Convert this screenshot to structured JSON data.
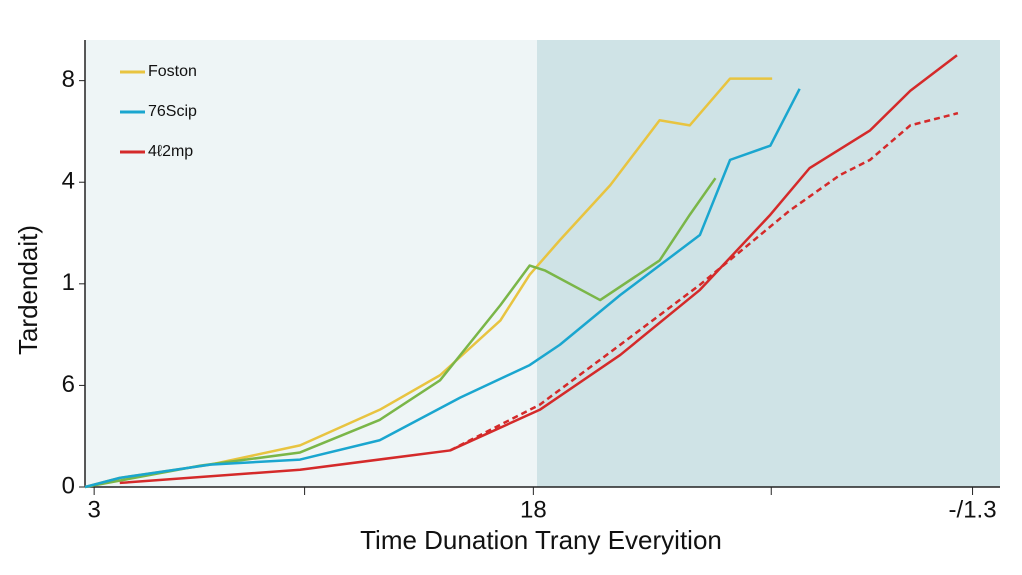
{
  "chart_data": {
    "type": "line",
    "y_label": "Tardendait)",
    "x_label": "Time Dunation Trany Everyition",
    "xlim": [
      0,
      100
    ],
    "ylim": [
      0,
      4.4
    ],
    "xticks": [
      {
        "value": 1,
        "label": "3"
      },
      {
        "value": 24,
        "label": null
      },
      {
        "value": 49,
        "label": "18"
      },
      {
        "value": 75,
        "label": null
      },
      {
        "value": 97,
        "label": "-/1.3"
      }
    ],
    "yticks": [
      0,
      {
        "value": 1,
        "label": "6"
      },
      {
        "value": 2,
        "label": "1"
      },
      {
        "value": 3,
        "label": "4"
      },
      {
        "value": 4,
        "label": "8"
      }
    ],
    "shaded_xrange": [
      49.4,
      100
    ],
    "shade_color": "#cfe3e6",
    "series": [
      {
        "name": "Foston",
        "color": "#e8c440",
        "dashed": false,
        "x": [
          0,
          3.8,
          13.7,
          23.5,
          32.2,
          38.8,
          45.4,
          48.6,
          51.9,
          57.4,
          62.8,
          66.1,
          70.5,
          75.1
        ],
        "values": [
          0,
          0.09,
          0.22,
          0.41,
          0.76,
          1.1,
          1.64,
          2.09,
          2.43,
          2.97,
          3.61,
          3.56,
          4.02,
          4.02
        ]
      },
      {
        "name": null,
        "color": "#7ab648",
        "dashed": false,
        "x": [
          0,
          12.6,
          23.5,
          32.2,
          38.8,
          45.4,
          48.6,
          50.3,
          56.3,
          62.8,
          66.1,
          68.9
        ],
        "values": [
          0,
          0.21,
          0.34,
          0.66,
          1.05,
          1.79,
          2.18,
          2.13,
          1.84,
          2.23,
          2.68,
          3.04
        ]
      },
      {
        "name": "76Scip",
        "color": "#1aa6cf",
        "dashed": false,
        "x": [
          0,
          3.8,
          13.7,
          23.5,
          32.2,
          41.0,
          48.6,
          51.9,
          58.5,
          67.2,
          70.5,
          74.9,
          78.1
        ],
        "values": [
          0,
          0.09,
          0.22,
          0.27,
          0.46,
          0.88,
          1.2,
          1.4,
          1.89,
          2.48,
          3.22,
          3.36,
          3.92
        ]
      },
      {
        "name": "4ℓ2mp",
        "color": "#d42a2a",
        "dashed": false,
        "x": [
          3.8,
          23.5,
          39.9,
          49.7,
          58.5,
          67.2,
          74.9,
          79.2,
          85.8,
          90.2,
          95.3
        ],
        "values": [
          0.04,
          0.17,
          0.36,
          0.76,
          1.3,
          1.94,
          2.68,
          3.14,
          3.51,
          3.9,
          4.25
        ]
      },
      {
        "name": null,
        "color": "#d42a2a",
        "dashed": true,
        "x": [
          39.9,
          49.7,
          58.5,
          67.2,
          77.0,
          82.5,
          85.8,
          90.2,
          95.4
        ],
        "values": [
          0.36,
          0.81,
          1.4,
          1.99,
          2.72,
          3.07,
          3.22,
          3.56,
          3.68
        ]
      }
    ]
  }
}
